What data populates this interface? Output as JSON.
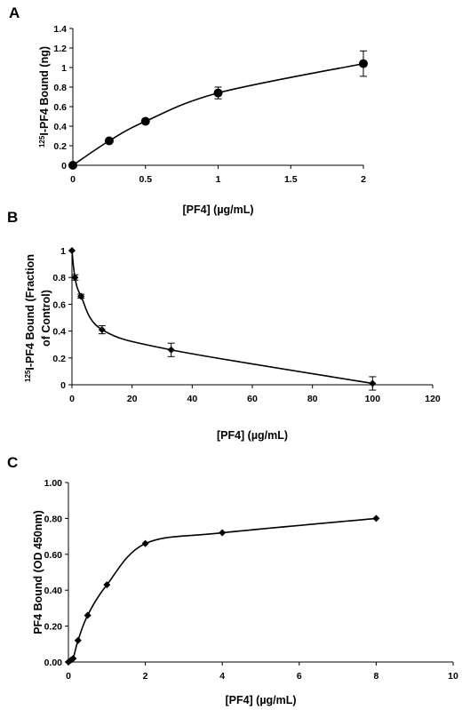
{
  "chart_data": [
    {
      "panel": "A",
      "type": "line",
      "xlabel": "[PF4] (µg/mL)",
      "ylabel_sup": "125",
      "ylabel_main": "I-PF4 Bound (ng)",
      "x_ticks": [
        "0",
        "0.5",
        "1",
        "1.5",
        "2"
      ],
      "y_ticks": [
        "0",
        "0.2",
        "0.4",
        "0.6",
        "0.8",
        "1",
        "1.2",
        "1.4"
      ],
      "xlim": [
        0,
        2
      ],
      "ylim": [
        0,
        1.4
      ],
      "marker": "circle",
      "x": [
        0,
        0.25,
        0.5,
        1,
        2
      ],
      "y": [
        0,
        0.25,
        0.45,
        0.74,
        1.04
      ],
      "err": [
        0,
        0.02,
        0.02,
        0.06,
        0.13
      ]
    },
    {
      "panel": "B",
      "type": "line",
      "xlabel": "[PF4] (µg/mL)",
      "ylabel_sup": "125",
      "ylabel_main": "I-PF4 Bound (Fraction",
      "ylabel_line2": "of Control)",
      "x_ticks": [
        "0",
        "20",
        "40",
        "60",
        "80",
        "100",
        "120"
      ],
      "y_ticks": [
        "0",
        "0.2",
        "0.4",
        "0.6",
        "0.8",
        "1"
      ],
      "xlim": [
        0,
        120
      ],
      "ylim": [
        0,
        1
      ],
      "marker": "diamond",
      "x": [
        0,
        1,
        3,
        10,
        33,
        100
      ],
      "y": [
        1.0,
        0.8,
        0.66,
        0.41,
        0.26,
        0.01
      ],
      "err": [
        0,
        0.02,
        0.015,
        0.03,
        0.05,
        0.05
      ]
    },
    {
      "panel": "C",
      "type": "line",
      "xlabel": "[PF4] (µg/mL)",
      "ylabel_main": "PF4 Bound (OD 450nm)",
      "x_ticks": [
        "0",
        "2",
        "4",
        "6",
        "8",
        "10"
      ],
      "y_ticks": [
        "0.00",
        "0.20",
        "0.40",
        "0.60",
        "0.80",
        "1.00"
      ],
      "xlim": [
        0,
        10
      ],
      "ylim": [
        0,
        1
      ],
      "marker": "diamond",
      "x": [
        0,
        0.0625,
        0.125,
        0.25,
        0.5,
        1,
        2,
        4,
        8
      ],
      "y": [
        0.0,
        0.01,
        0.02,
        0.12,
        0.26,
        0.43,
        0.66,
        0.72,
        0.8
      ],
      "err": [
        0,
        0,
        0,
        0,
        0,
        0,
        0,
        0,
        0
      ]
    }
  ]
}
